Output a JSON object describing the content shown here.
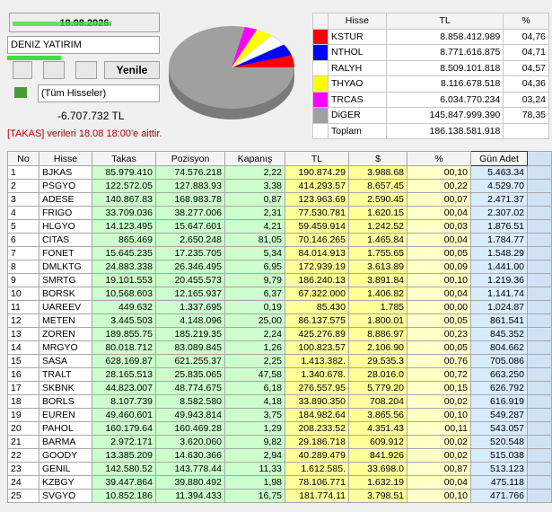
{
  "header": {
    "date": "18.08.2026",
    "broker": "DENIZ YATIRIM",
    "refresh": "Yenile",
    "filter": "(Tüm Hisseler)",
    "amount": "-6.707.732 TL",
    "note": "[TAKAS] verileri 18.08 18:00'e aittir."
  },
  "summary": {
    "columns": [
      "Hisse",
      "TL",
      "%"
    ],
    "rows": [
      {
        "name": "KSTUR",
        "color": "#ff0000",
        "tl": "8.858.412.989",
        "pct": {
          "value": 4.76,
          "label": "04,76"
        }
      },
      {
        "name": "NTHOL",
        "color": "#0000ff",
        "tl": "8.771.616.875",
        "pct": {
          "value": 4.71,
          "label": "04,71"
        }
      },
      {
        "name": "RALYH",
        "color": "#ffffff",
        "tl": "8.509.101.818",
        "pct": {
          "value": 4.57,
          "label": "04,57"
        }
      },
      {
        "name": "THYAO",
        "color": "#ffff00",
        "tl": "8.116.678.518",
        "pct": {
          "value": 4.36,
          "label": "04,36"
        }
      },
      {
        "name": "TRCAS",
        "color": "#ff00ff",
        "tl": "6.034.770.234",
        "pct": {
          "value": 3.24,
          "label": "03,24"
        }
      },
      {
        "name": "DiGER",
        "color": "#a0a0a0",
        "tl": "145.847.999.390",
        "pct": {
          "value": 78.35,
          "label": "78,35"
        }
      }
    ],
    "total": {
      "name": "Toplam",
      "tl": "186.138.581.918"
    }
  },
  "table": {
    "columns": [
      "No",
      "Hisse",
      "Takas",
      "Pozisyon",
      "Kapanış",
      "TL",
      "$",
      "%",
      "Gün Adet"
    ],
    "rows": [
      [
        "1",
        "BJKAS",
        "85.979.410",
        "74.576.218",
        "2,22",
        "190.874.29",
        "3.988.68",
        "00,10",
        "5.463.34"
      ],
      [
        "2",
        "PSGYO",
        "122.572.05",
        "127.883.93",
        "3,38",
        "414.293.57",
        "8.657.45",
        "00,22",
        "4.529.70"
      ],
      [
        "3",
        "ADESE",
        "140.867.83",
        "168.983.78",
        "0,87",
        "123.963.69",
        "2.590.45",
        "00,07",
        "2.471.37"
      ],
      [
        "4",
        "FRIGO",
        "33.709.036",
        "38.277.006",
        "2,31",
        "77.530.781",
        "1.620.15",
        "00,04",
        "2.307.02"
      ],
      [
        "5",
        "HLGYO",
        "14.123.495",
        "15.647.601",
        "4,21",
        "59.459.914",
        "1.242.52",
        "00,03",
        "1.876.51"
      ],
      [
        "6",
        "CITAS",
        "865.469",
        "2.650.248",
        "81,05",
        "70.146.265",
        "1.465.84",
        "00,04",
        "1.784.77"
      ],
      [
        "7",
        "FONET",
        "15.645.235",
        "17.235.705",
        "5,34",
        "84.014.913",
        "1.755.65",
        "00,05",
        "1.548.29"
      ],
      [
        "8",
        "DMLKTG",
        "24.883.338",
        "26.346.495",
        "6,95",
        "172.939.19",
        "3.613.89",
        "00,09",
        "1.441.00"
      ],
      [
        "9",
        "SMRTG",
        "19.101.553",
        "20.455.573",
        "9,79",
        "186.240.13",
        "3.891.84",
        "00,10",
        "1.219.36"
      ],
      [
        "10",
        "BORSK",
        "10.568.603",
        "12.165.937",
        "6,37",
        "67.322.000",
        "1.406.82",
        "00,04",
        "1.141.74"
      ],
      [
        "11",
        "UAREEV",
        "449.632",
        "1.337.695",
        "0,19",
        "85.430",
        "1.785",
        "00,00",
        "1.024.87"
      ],
      [
        "12",
        "METEN",
        "3.445.503",
        "4.148.096",
        "25,00",
        "86.137.575",
        "1.800.01",
        "00,05",
        "861.541"
      ],
      [
        "13",
        "ZOREN",
        "189.855.75",
        "185.219.35",
        "2,24",
        "425.276.89",
        "8.886.97",
        "00,23",
        "845.352"
      ],
      [
        "14",
        "MRGYO",
        "80.018.712",
        "83.089.845",
        "1,26",
        "100.823.57",
        "2.106.90",
        "00,05",
        "804.662"
      ],
      [
        "15",
        "SASA",
        "628.169.87",
        "621.255.37",
        "2,25",
        "1.413.382.",
        "29.535.3",
        "00,76",
        "705.086"
      ],
      [
        "16",
        "TRALT",
        "28.165.513",
        "25.835.065",
        "47,58",
        "1.340.678.",
        "28.016.0",
        "00,72",
        "663.250"
      ],
      [
        "17",
        "SKBNK",
        "44.823.007",
        "48.774.675",
        "6,18",
        "276.557.95",
        "5.779.20",
        "00,15",
        "626.792"
      ],
      [
        "18",
        "BORLS",
        "8.107.739",
        "8.582.580",
        "4,18",
        "33.890.350",
        "708.204",
        "00,02",
        "616.919"
      ],
      [
        "19",
        "EUREN",
        "49.460.601",
        "49.943.814",
        "3,75",
        "184.982.64",
        "3.865.56",
        "00,10",
        "549.287"
      ],
      [
        "20",
        "PAHOL",
        "160.179.64",
        "160.469.28",
        "1,29",
        "208.233.52",
        "4.351.43",
        "00,11",
        "543.057"
      ],
      [
        "21",
        "BARMA",
        "2.972.171",
        "3.620.060",
        "9,82",
        "29.186.718",
        "609.912",
        "00,02",
        "520.548"
      ],
      [
        "22",
        "GOODY",
        "13.385.209",
        "14.630.366",
        "2,94",
        "40.289.479",
        "841.926",
        "00,02",
        "515.038"
      ],
      [
        "23",
        "GENIL",
        "142.580.52",
        "143.778.44",
        "11,33",
        "1.612.585.",
        "33.698.0",
        "00,87",
        "513.123"
      ],
      [
        "24",
        "KZBGY",
        "39.447.864",
        "39.880.492",
        "1,98",
        "78.106.771",
        "1.632.19",
        "00,04",
        "475.118"
      ],
      [
        "25",
        "SVGYO",
        "10.852.186",
        "11.394.433",
        "16,75",
        "181.774.11",
        "3.798.51",
        "00,10",
        "471.766"
      ]
    ]
  }
}
